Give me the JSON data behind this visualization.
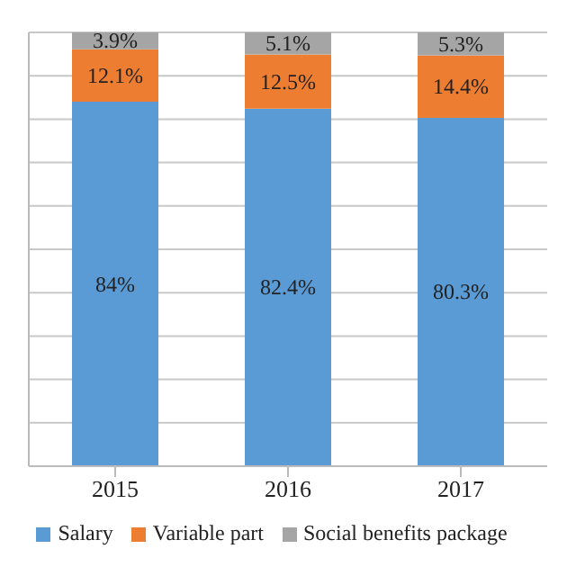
{
  "chart_data": {
    "type": "bar",
    "stacked": true,
    "categories": [
      "2015",
      "2016",
      "2017"
    ],
    "series": [
      {
        "name": "Salary",
        "color": "#5b9bd5",
        "values": [
          84,
          82.4,
          80.3
        ],
        "value_labels": [
          "84%",
          "82.4%",
          "80.3%"
        ]
      },
      {
        "name": "Variable part",
        "color": "#ed7d31",
        "values": [
          12.1,
          12.5,
          14.4
        ],
        "value_labels": [
          "12.1%",
          "12.5%",
          "14.4%"
        ]
      },
      {
        "name": "Social benefits package",
        "color": "#a5a5a5",
        "values": [
          3.9,
          5.1,
          5.3
        ],
        "value_labels": [
          "3.9%",
          "5.1%",
          "5.3%"
        ]
      }
    ],
    "ylim": [
      0,
      100
    ],
    "yticks": [
      {
        "value": 0,
        "label": null
      },
      {
        "value": 10,
        "label": null
      },
      {
        "value": 20,
        "label": null
      },
      {
        "value": 30,
        "label": null
      },
      {
        "value": 40,
        "label": null
      },
      {
        "value": 50,
        "label": null
      },
      {
        "value": 60,
        "label": null
      },
      {
        "value": 70,
        "label": null
      },
      {
        "value": 80,
        "label": null
      },
      {
        "value": 90,
        "label": null
      },
      {
        "value": 100,
        "label": null
      }
    ],
    "tick_labels": "x",
    "grid": "y",
    "legend": "bottom"
  }
}
